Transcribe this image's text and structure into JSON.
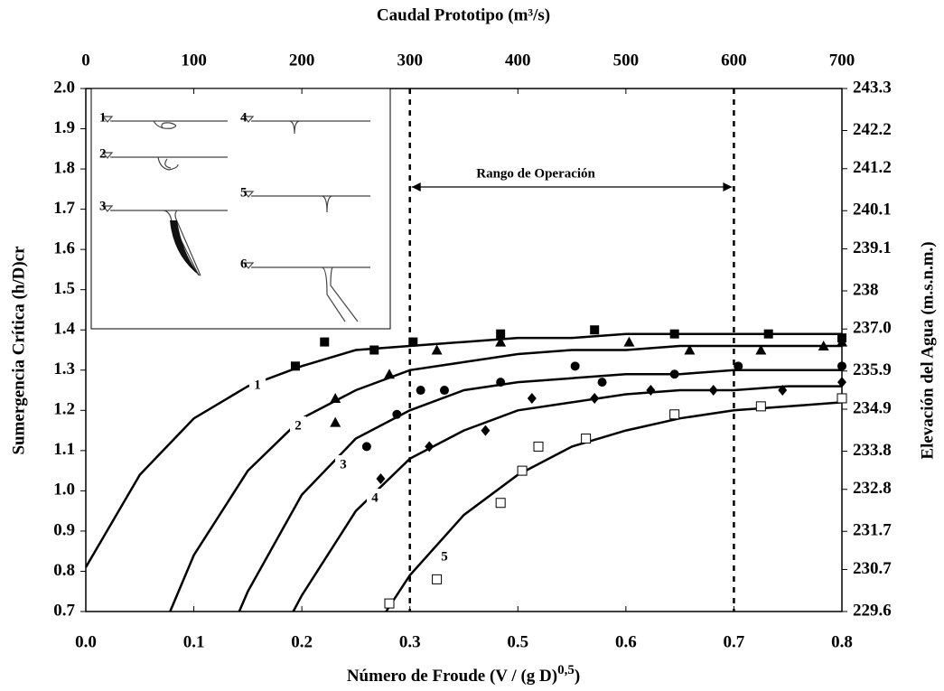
{
  "chart_data": {
    "type": "scatter",
    "x_label": "Caudal Prototipo (m³/s)",
    "x2_label": [
      "Número de Froude (V / (g D)",
      "0,5",
      ")"
    ],
    "y_label": "Sumergencia Crítica (h/D)cr",
    "y2_label": "Elevación del Agua (m.s.n.m.)",
    "xlim": [
      0,
      700
    ],
    "xticks": [
      0,
      100,
      200,
      300,
      400,
      500,
      600,
      700
    ],
    "x2ticks": [
      {
        "value": 0,
        "label": "0.0"
      },
      {
        "value": 100,
        "label": "0.1"
      },
      {
        "value": 200,
        "label": "0.2"
      },
      {
        "value": 300,
        "label": "0.3"
      },
      {
        "value": 400,
        "label": "0.5"
      },
      {
        "value": 500,
        "label": "0.6"
      },
      {
        "value": 600,
        "label": "0.7"
      },
      {
        "value": 700,
        "label": "0.8"
      }
    ],
    "ylim": [
      0.7,
      2.0
    ],
    "yticks": [
      0.7,
      0.8,
      0.9,
      {
        "value": 1.0,
        "label": "1.0"
      },
      1.1,
      1.2,
      1.3,
      1.4,
      1.5,
      1.6,
      1.7,
      1.8,
      1.9,
      {
        "value": 2.0,
        "label": "2.0"
      }
    ],
    "y2lim": [
      229.6,
      243.3
    ],
    "y2ticks": [
      229.6,
      230.7,
      231.7,
      232.8,
      233.8,
      234.9,
      235.9,
      {
        "value": 237,
        "label": "237.0"
      },
      238,
      239.1,
      240.1,
      241.2,
      242.2,
      243.3
    ],
    "vlines": [
      300,
      600
    ],
    "range_label": "Rango de Operación",
    "inset_labels": [
      "1",
      "2",
      "3",
      "4",
      "5",
      "6"
    ],
    "color": "#000000",
    "series": [
      {
        "name": "1",
        "marker": "square",
        "x": [
          194,
          221,
          267,
          303,
          384,
          471,
          545,
          632,
          700
        ],
        "values": [
          1.31,
          1.37,
          1.35,
          1.37,
          1.39,
          1.4,
          1.39,
          1.39,
          1.38
        ],
        "fit_x": [
          0,
          50,
          100,
          150,
          200,
          250,
          300,
          350,
          400,
          450,
          500,
          550,
          600,
          650,
          700
        ],
        "fit_values": [
          0.81,
          1.04,
          1.18,
          1.26,
          1.31,
          1.35,
          1.36,
          1.37,
          1.38,
          1.38,
          1.39,
          1.39,
          1.39,
          1.39,
          1.39
        ]
      },
      {
        "name": "2",
        "marker": "triangle",
        "x": [
          231,
          231,
          281,
          325,
          384,
          503,
          559,
          625,
          683,
          700
        ],
        "values": [
          1.23,
          1.17,
          1.29,
          1.35,
          1.37,
          1.37,
          1.35,
          1.35,
          1.36,
          1.37
        ],
        "fit_x": [
          78,
          100,
          150,
          200,
          250,
          300,
          350,
          400,
          450,
          500,
          550,
          600,
          650,
          700
        ],
        "fit_values": [
          0.7,
          0.84,
          1.05,
          1.18,
          1.25,
          1.3,
          1.32,
          1.34,
          1.35,
          1.35,
          1.36,
          1.36,
          1.36,
          1.36
        ]
      },
      {
        "name": "3",
        "marker": "circle",
        "x": [
          260,
          288,
          310,
          332,
          384,
          453,
          478,
          545,
          604,
          700
        ],
        "values": [
          1.11,
          1.19,
          1.25,
          1.25,
          1.27,
          1.31,
          1.27,
          1.29,
          1.31,
          1.31
        ],
        "fit_x": [
          142,
          150,
          200,
          250,
          300,
          350,
          400,
          450,
          500,
          550,
          600,
          650,
          700
        ],
        "fit_values": [
          0.7,
          0.75,
          0.99,
          1.13,
          1.2,
          1.25,
          1.27,
          1.28,
          1.29,
          1.29,
          1.3,
          1.3,
          1.3
        ]
      },
      {
        "name": "4",
        "marker": "diamond",
        "x": [
          273,
          318,
          370,
          413,
          471,
          523,
          581,
          645,
          700
        ],
        "values": [
          1.03,
          1.11,
          1.15,
          1.23,
          1.23,
          1.25,
          1.25,
          1.25,
          1.27
        ],
        "fit_x": [
          192,
          200,
          250,
          300,
          350,
          400,
          450,
          500,
          550,
          600,
          650,
          700
        ],
        "fit_values": [
          0.7,
          0.74,
          0.95,
          1.08,
          1.15,
          1.2,
          1.22,
          1.24,
          1.25,
          1.25,
          1.26,
          1.26
        ]
      },
      {
        "name": "5",
        "marker": "open-square",
        "x": [
          281,
          325,
          384,
          404,
          419,
          463,
          545,
          625,
          700
        ],
        "values": [
          0.72,
          0.78,
          0.97,
          1.05,
          1.11,
          1.13,
          1.19,
          1.21,
          1.23
        ],
        "fit_x": [
          278,
          300,
          350,
          400,
          450,
          500,
          550,
          600,
          650,
          700
        ],
        "fit_values": [
          0.7,
          0.79,
          0.94,
          1.04,
          1.11,
          1.15,
          1.18,
          1.2,
          1.21,
          1.22
        ]
      }
    ]
  }
}
